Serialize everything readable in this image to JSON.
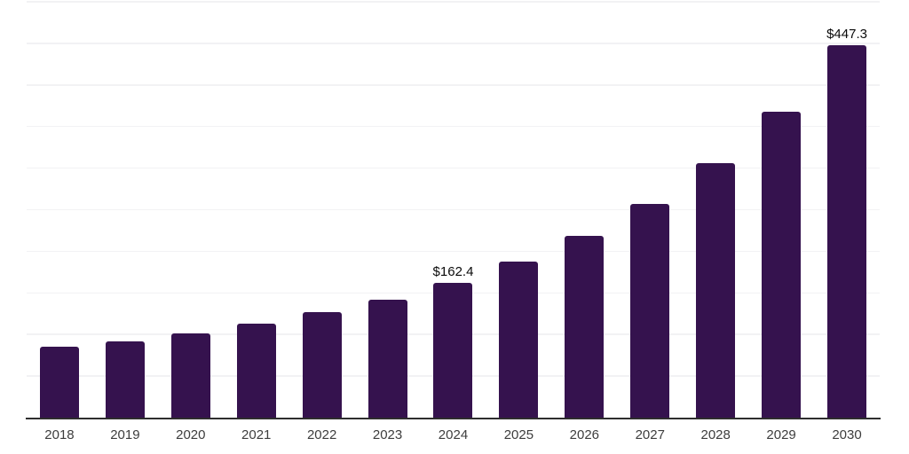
{
  "chart_data": {
    "type": "bar",
    "title": "",
    "xlabel": "",
    "ylabel": "",
    "categories": [
      "2018",
      "2019",
      "2020",
      "2021",
      "2022",
      "2023",
      "2024",
      "2025",
      "2026",
      "2027",
      "2028",
      "2029",
      "2030"
    ],
    "values": [
      84.8,
      91.8,
      101.8,
      113.4,
      126.5,
      142.0,
      162.4,
      187.9,
      218.7,
      256.8,
      305.6,
      368.1,
      447.3
    ],
    "data_labels": [
      {
        "index": 6,
        "text": "$162.4"
      },
      {
        "index": 12,
        "text": "$447.3"
      }
    ],
    "ylim": [
      0,
      500
    ],
    "grid_step": 50,
    "grid": true,
    "legend": false,
    "y_axis_tick_labels_visible": false,
    "colors": {
      "bar": "#35124e",
      "gridline": "#f2f2f4",
      "axis_line": "#2e2e2e",
      "tick_label": "#3d3d3d",
      "data_label": "#0a0a0a",
      "background": "#ffffff"
    }
  }
}
